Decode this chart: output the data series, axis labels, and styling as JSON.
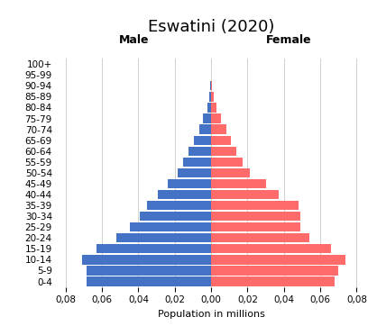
{
  "title": "Eswatini (2020)",
  "xlabel": "Population in millions",
  "male_label": "Male",
  "female_label": "Female",
  "age_groups": [
    "0-4",
    "5-9",
    "10-14",
    "15-19",
    "20-24",
    "25-29",
    "30-34",
    "35-39",
    "40-44",
    "45-49",
    "50-54",
    "55-59",
    "60-64",
    "65-69",
    "70-74",
    "75-79",
    "80-84",
    "85-89",
    "90-94",
    "95-99",
    "100+"
  ],
  "male_values": [
    0.0685,
    0.0685,
    0.071,
    0.063,
    0.052,
    0.0445,
    0.039,
    0.0355,
    0.0295,
    0.024,
    0.0185,
    0.0155,
    0.0125,
    0.0095,
    0.0065,
    0.0045,
    0.002,
    0.001,
    0.0003,
    0.0001,
    5e-05
  ],
  "female_values": [
    0.068,
    0.07,
    0.074,
    0.066,
    0.054,
    0.049,
    0.049,
    0.048,
    0.037,
    0.03,
    0.0215,
    0.0175,
    0.014,
    0.011,
    0.0085,
    0.0055,
    0.003,
    0.0014,
    0.0004,
    0.0001,
    5e-05
  ],
  "male_color": "#4472C4",
  "female_color": "#FF6B6B",
  "background_color": "#FFFFFF",
  "xlim": 0.085,
  "bar_height": 0.85,
  "title_fontsize": 13,
  "label_fontsize": 9,
  "tick_fontsize": 7.5,
  "xlabel_fontsize": 8
}
